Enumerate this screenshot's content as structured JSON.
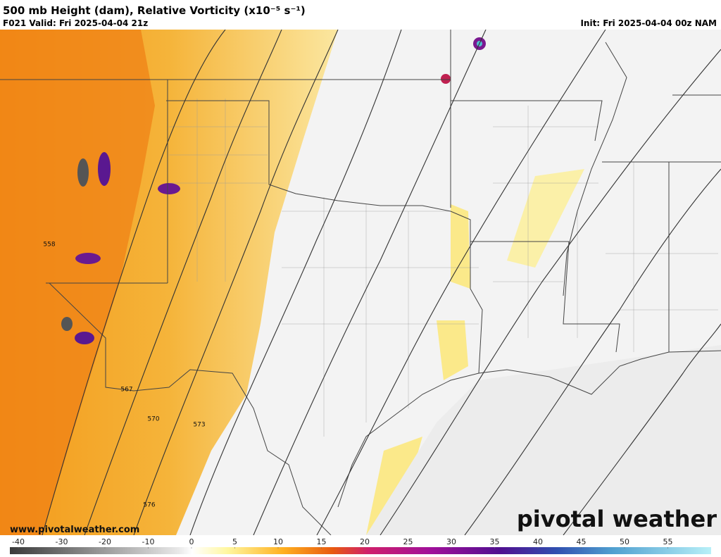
{
  "header": {
    "title": "500 mb Height (dam), Relative Vorticity (x10⁻⁵ s⁻¹)",
    "valid": "F021 Valid: Fri 2025-04-04 21z",
    "init": "Init: Fri 2025-04-04 00z NAM"
  },
  "map": {
    "contour_labels": [
      "558",
      "567",
      "570",
      "573",
      "576"
    ],
    "website": "www.pivotalweather.com",
    "brand": "pivotal weather"
  },
  "colorbar": {
    "ticks": [
      -40,
      -30,
      -20,
      -10,
      0,
      5,
      10,
      15,
      20,
      25,
      30,
      35,
      40,
      45,
      50,
      55
    ]
  }
}
